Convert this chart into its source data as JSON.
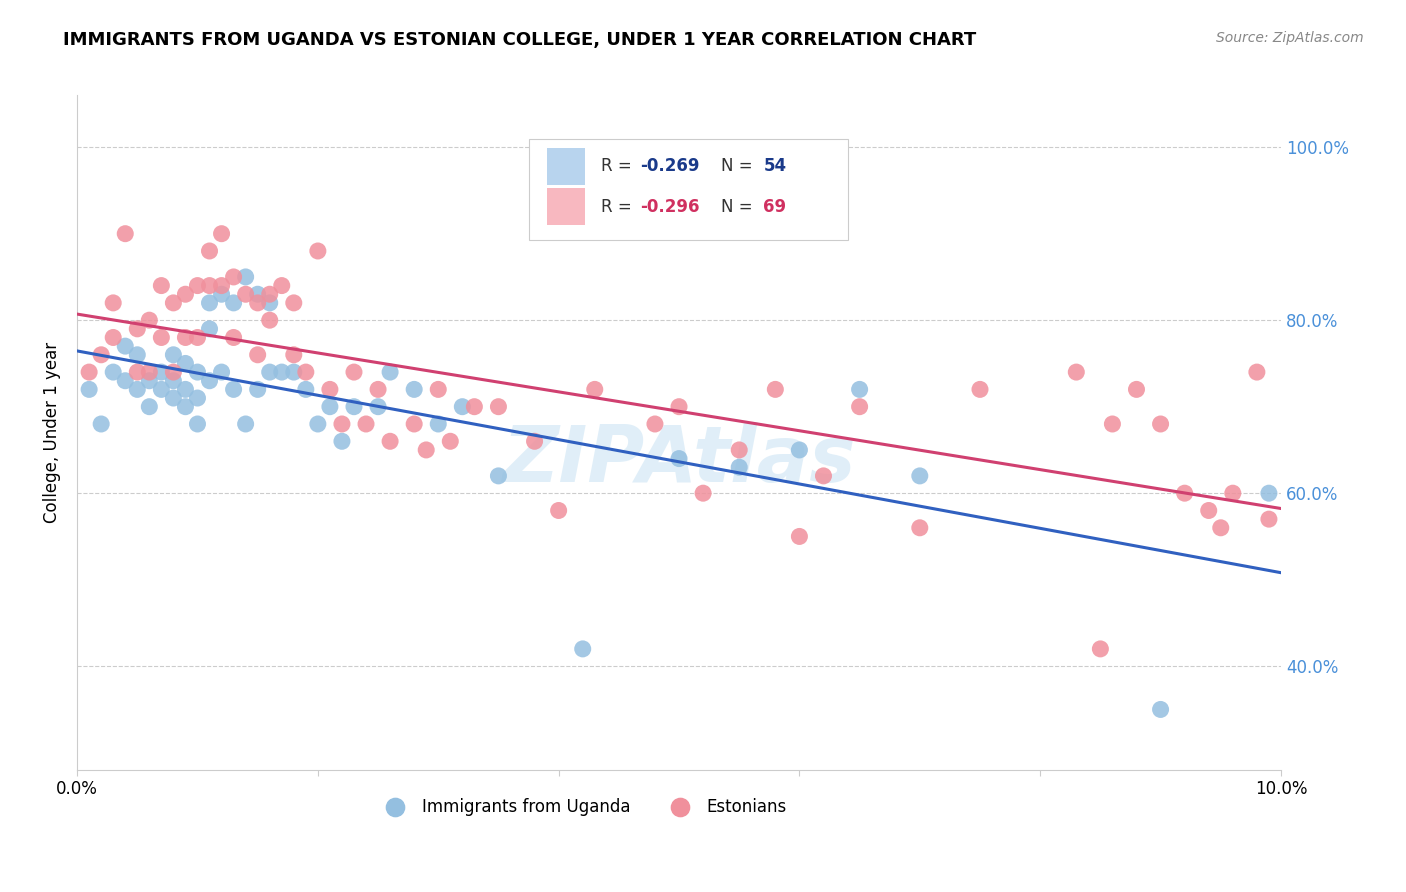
{
  "title": "IMMIGRANTS FROM UGANDA VS ESTONIAN COLLEGE, UNDER 1 YEAR CORRELATION CHART",
  "source": "Source: ZipAtlas.com",
  "ylabel": "College, Under 1 year",
  "ytick_labels": [
    "40.0%",
    "60.0%",
    "80.0%",
    "100.0%"
  ],
  "ytick_values": [
    0.4,
    0.6,
    0.8,
    1.0
  ],
  "watermark": "ZIPAtlas",
  "blue_color": "#94bfe0",
  "pink_color": "#f0909c",
  "blue_legend_color": "#b8d4ee",
  "pink_legend_color": "#f8b8c0",
  "trend_blue": "#3060c0",
  "trend_pink": "#d04070",
  "xlim": [
    0.0,
    0.1
  ],
  "ylim": [
    0.28,
    1.06
  ],
  "blue_points_x": [
    0.001,
    0.002,
    0.003,
    0.004,
    0.004,
    0.005,
    0.005,
    0.006,
    0.006,
    0.007,
    0.007,
    0.008,
    0.008,
    0.008,
    0.009,
    0.009,
    0.009,
    0.01,
    0.01,
    0.01,
    0.011,
    0.011,
    0.011,
    0.012,
    0.012,
    0.013,
    0.013,
    0.014,
    0.014,
    0.015,
    0.015,
    0.016,
    0.016,
    0.017,
    0.018,
    0.019,
    0.02,
    0.021,
    0.022,
    0.023,
    0.025,
    0.026,
    0.028,
    0.03,
    0.032,
    0.035,
    0.042,
    0.05,
    0.055,
    0.06,
    0.065,
    0.07,
    0.09,
    0.099
  ],
  "blue_points_y": [
    0.72,
    0.68,
    0.74,
    0.73,
    0.77,
    0.72,
    0.76,
    0.73,
    0.7,
    0.74,
    0.72,
    0.71,
    0.76,
    0.73,
    0.72,
    0.75,
    0.7,
    0.74,
    0.71,
    0.68,
    0.82,
    0.79,
    0.73,
    0.74,
    0.83,
    0.72,
    0.82,
    0.68,
    0.85,
    0.83,
    0.72,
    0.74,
    0.82,
    0.74,
    0.74,
    0.72,
    0.68,
    0.7,
    0.66,
    0.7,
    0.7,
    0.74,
    0.72,
    0.68,
    0.7,
    0.62,
    0.42,
    0.64,
    0.63,
    0.65,
    0.72,
    0.62,
    0.35,
    0.6
  ],
  "pink_points_x": [
    0.001,
    0.002,
    0.003,
    0.003,
    0.004,
    0.005,
    0.005,
    0.006,
    0.006,
    0.007,
    0.007,
    0.008,
    0.008,
    0.009,
    0.009,
    0.01,
    0.01,
    0.011,
    0.011,
    0.012,
    0.012,
    0.013,
    0.013,
    0.014,
    0.015,
    0.015,
    0.016,
    0.016,
    0.017,
    0.018,
    0.018,
    0.019,
    0.02,
    0.021,
    0.022,
    0.023,
    0.024,
    0.025,
    0.026,
    0.028,
    0.029,
    0.03,
    0.031,
    0.033,
    0.035,
    0.038,
    0.04,
    0.043,
    0.048,
    0.05,
    0.052,
    0.055,
    0.058,
    0.06,
    0.062,
    0.065,
    0.07,
    0.075,
    0.083,
    0.085,
    0.086,
    0.088,
    0.09,
    0.092,
    0.094,
    0.095,
    0.096,
    0.098,
    0.099
  ],
  "pink_points_y": [
    0.74,
    0.76,
    0.82,
    0.78,
    0.9,
    0.79,
    0.74,
    0.8,
    0.74,
    0.84,
    0.78,
    0.74,
    0.82,
    0.83,
    0.78,
    0.84,
    0.78,
    0.88,
    0.84,
    0.9,
    0.84,
    0.85,
    0.78,
    0.83,
    0.82,
    0.76,
    0.83,
    0.8,
    0.84,
    0.82,
    0.76,
    0.74,
    0.88,
    0.72,
    0.68,
    0.74,
    0.68,
    0.72,
    0.66,
    0.68,
    0.65,
    0.72,
    0.66,
    0.7,
    0.7,
    0.66,
    0.58,
    0.72,
    0.68,
    0.7,
    0.6,
    0.65,
    0.72,
    0.55,
    0.62,
    0.7,
    0.56,
    0.72,
    0.74,
    0.42,
    0.68,
    0.72,
    0.68,
    0.6,
    0.58,
    0.56,
    0.6,
    0.74,
    0.57
  ]
}
